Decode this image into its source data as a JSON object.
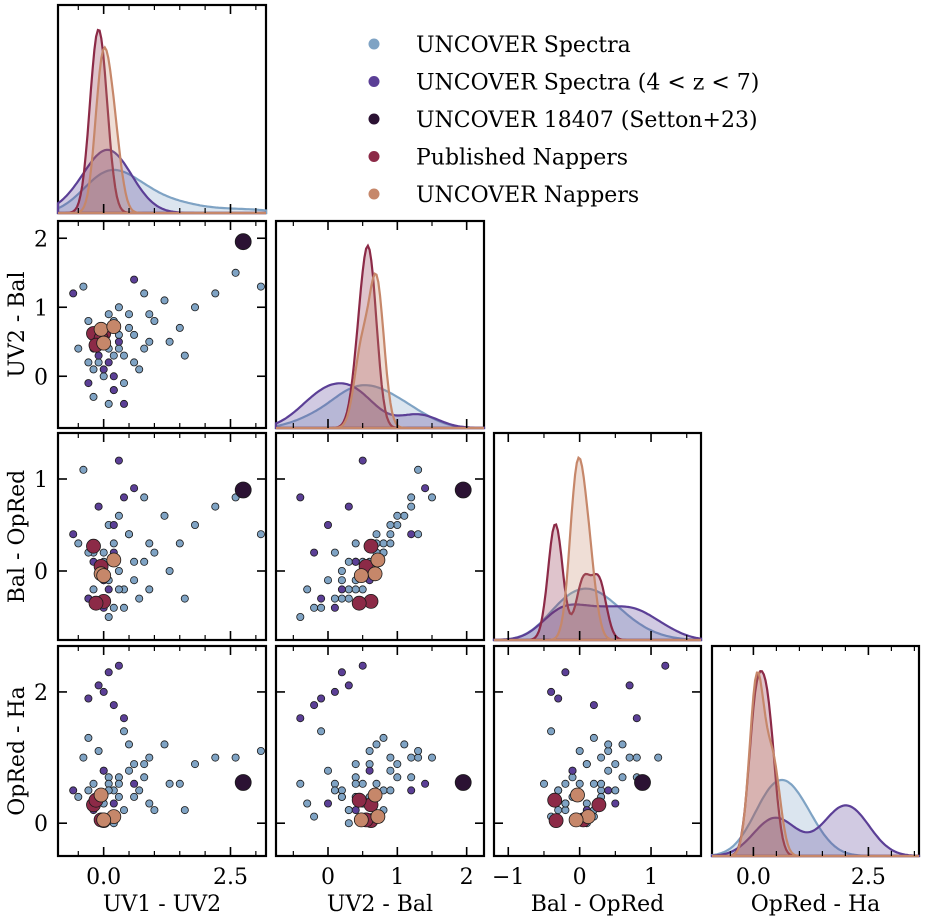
{
  "chart_data": {
    "type": "scatter",
    "title": "",
    "variables": [
      "UV1 - UV2",
      "UV2 - Bal",
      "Bal - OpRed",
      "OpRed - Ha"
    ],
    "axes": [
      {
        "label": "UV1 - UV2",
        "range": [
          -0.9,
          3.2
        ],
        "ticks": [
          0.0,
          2.5
        ],
        "tick_labels": [
          "0.0",
          "2.5"
        ],
        "minor_ticks": [
          -0.5,
          0.5,
          1.0,
          1.5,
          2.0,
          3.0
        ]
      },
      {
        "label": "UV2 - Bal",
        "range": [
          -0.75,
          2.25
        ],
        "ticks": [
          0,
          1,
          2
        ],
        "tick_labels": [
          "0",
          "1",
          "2"
        ],
        "minor_ticks": [
          -0.5,
          0.5,
          1.5
        ]
      },
      {
        "label": "Bal - OpRed",
        "range": [
          -1.2,
          1.7
        ],
        "ticks": [
          -1,
          0,
          1
        ],
        "tick_labels": [
          "−1",
          "0",
          "1"
        ],
        "minor_ticks": [
          -0.5,
          0.5,
          1.5
        ]
      },
      {
        "label": "OpRed - Ha",
        "range": [
          -0.9,
          3.6
        ],
        "ticks": [
          0.0,
          2.5
        ],
        "tick_labels": [
          "0.0",
          "2.5"
        ],
        "minor_ticks": [
          -0.5,
          0.5,
          1.0,
          1.5,
          2.0,
          3.0,
          3.5
        ]
      }
    ],
    "scatter_y_axes": [
      {
        "label": "UV2 - Bal",
        "range": [
          -0.75,
          2.25
        ],
        "ticks": [
          0,
          1,
          2
        ],
        "tick_labels": [
          "0",
          "1",
          "2"
        ]
      },
      {
        "label": "Bal - OpRed",
        "range": [
          -0.75,
          1.5
        ],
        "ticks": [
          0,
          1
        ],
        "tick_labels": [
          "0",
          "1"
        ]
      },
      {
        "label": "OpRed - Ha",
        "range": [
          -0.5,
          2.7
        ],
        "ticks": [
          0,
          2
        ],
        "tick_labels": [
          "0",
          "2"
        ]
      }
    ],
    "legend": {
      "position": "top-right",
      "entries": [
        {
          "label": "UNCOVER Spectra",
          "color": "#7fa3c4"
        },
        {
          "label": "UNCOVER Spectra (4 < z < 7)",
          "color": "#5b3f96"
        },
        {
          "label": "UNCOVER 18407 (Setton+23)",
          "color": "#2b1233"
        },
        {
          "label": "Published Nappers",
          "color": "#8c2a47"
        },
        {
          "label": "UNCOVER Nappers",
          "color": "#c6876a"
        }
      ]
    },
    "series": [
      {
        "name": "UNCOVER Spectra",
        "color": "#7fa3c4",
        "points": [
          [
            -0.4,
            1.3,
            1.1,
            1.0
          ],
          [
            0.2,
            0.8,
            0.3,
            0.5
          ],
          [
            0.1,
            0.4,
            -0.1,
            0.7
          ],
          [
            -0.2,
            0.1,
            0.2,
            0.6
          ],
          [
            0.3,
            0.6,
            0.0,
            0.4
          ],
          [
            0.0,
            0.5,
            0.1,
            0.3
          ],
          [
            -0.3,
            0.2,
            -0.3,
            0.5
          ],
          [
            0.5,
            0.9,
            0.4,
            0.8
          ],
          [
            0.8,
            0.4,
            0.1,
            0.9
          ],
          [
            1.2,
            1.1,
            0.6,
            1.2
          ],
          [
            1.5,
            0.7,
            0.3,
            0.6
          ],
          [
            0.4,
            0.3,
            -0.2,
            0.2
          ],
          [
            0.2,
            -0.2,
            -0.4,
            0.1
          ],
          [
            -0.1,
            0.6,
            0.0,
            1.1
          ],
          [
            0.6,
            0.2,
            -0.1,
            0.4
          ],
          [
            1.8,
            1.0,
            0.5,
            0.9
          ],
          [
            2.2,
            1.2,
            0.7,
            1.0
          ],
          [
            0.9,
            0.5,
            -0.2,
            0.3
          ],
          [
            0.1,
            -0.4,
            -0.5,
            0.6
          ],
          [
            -0.3,
            0.8,
            0.2,
            1.3
          ],
          [
            0.3,
            1.0,
            0.6,
            0.7
          ],
          [
            0.7,
            0.1,
            -0.3,
            0.5
          ],
          [
            1.0,
            0.8,
            0.2,
            0.2
          ],
          [
            0.0,
            0.0,
            -0.1,
            0.8
          ],
          [
            -0.5,
            0.4,
            0.3,
            0.4
          ],
          [
            0.4,
            -0.1,
            -0.4,
            1.4
          ],
          [
            1.3,
            0.5,
            0.0,
            0.6
          ],
          [
            2.6,
            1.5,
            0.8,
            1.0
          ],
          [
            3.1,
            1.3,
            0.4,
            1.1
          ],
          [
            0.2,
            0.3,
            0.1,
            0.0
          ],
          [
            -0.2,
            -0.3,
            -0.2,
            0.3
          ],
          [
            0.5,
            0.7,
            0.4,
            1.2
          ],
          [
            0.8,
            1.2,
            0.8,
            0.7
          ],
          [
            0.1,
            0.9,
            0.5,
            0.5
          ],
          [
            1.6,
            0.3,
            -0.3,
            0.2
          ],
          [
            0.6,
            0.6,
            0.1,
            0.9
          ],
          [
            -0.1,
            0.2,
            0.0,
            0.4
          ],
          [
            0.3,
            0.4,
            -0.2,
            0.6
          ],
          [
            0.9,
            0.9,
            0.3,
            1.0
          ],
          [
            0.0,
            0.7,
            0.2,
            0.1
          ]
        ]
      },
      {
        "name": "UNCOVER Spectra (4 < z < 7)",
        "color": "#5b3f96",
        "points": [
          [
            -0.1,
            0.3,
            0.7,
            2.1
          ],
          [
            0.3,
            0.5,
            1.2,
            2.4
          ],
          [
            0.0,
            0.1,
            -0.4,
            2.0
          ],
          [
            -0.6,
            1.2,
            0.4,
            0.5
          ],
          [
            0.2,
            -0.2,
            0.2,
            1.8
          ],
          [
            0.6,
            1.4,
            0.9,
            0.6
          ],
          [
            0.1,
            0.2,
            -0.2,
            2.3
          ],
          [
            -0.2,
            0.4,
            0.1,
            0.2
          ],
          [
            0.4,
            -0.4,
            0.8,
            1.6
          ],
          [
            0.0,
            0.6,
            -0.1,
            0.8
          ],
          [
            0.2,
            0.0,
            0.5,
            0.3
          ],
          [
            -0.3,
            -0.1,
            -0.3,
            1.9
          ]
        ]
      },
      {
        "name": "UNCOVER 18407 (Setton+23)",
        "color": "#2b1233",
        "points": [
          [
            2.75,
            1.95,
            0.88,
            0.62
          ]
        ]
      },
      {
        "name": "Published Nappers",
        "color": "#8c2a47",
        "points": [
          [
            -0.2,
            0.62,
            0.27,
            0.28
          ],
          [
            0.0,
            0.62,
            -0.33,
            0.04
          ],
          [
            -0.05,
            0.55,
            0.05,
            0.05
          ],
          [
            -0.15,
            0.45,
            -0.35,
            0.35
          ]
        ]
      },
      {
        "name": "UNCOVER Nappers",
        "color": "#c6876a",
        "points": [
          [
            -0.05,
            0.68,
            -0.03,
            0.43
          ],
          [
            0.2,
            0.72,
            0.12,
            0.1
          ],
          [
            0.0,
            0.48,
            -0.05,
            0.05
          ]
        ]
      }
    ],
    "diagonal": "kde"
  }
}
